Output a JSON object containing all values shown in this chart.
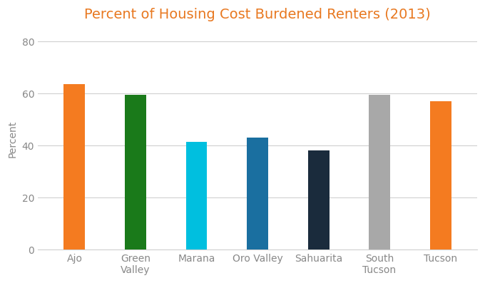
{
  "title": "Percent of Housing Cost Burdened Renters (2013)",
  "categories": [
    "Ajo",
    "Green\nValley",
    "Marana",
    "Oro Valley",
    "Sahuarita",
    "South\nTucson",
    "Tucson"
  ],
  "values": [
    63.5,
    59.5,
    41.5,
    43.0,
    38.0,
    59.5,
    57.0
  ],
  "bar_colors": [
    "#F47B20",
    "#1A7A1A",
    "#00BFDF",
    "#1A6FA0",
    "#1A2B3C",
    "#A8A8A8",
    "#F47B20"
  ],
  "ylabel": "Percent",
  "ylim": [
    0,
    85
  ],
  "yticks": [
    0,
    20,
    40,
    60,
    80
  ],
  "background_color": "#ffffff",
  "grid_color": "#d0d0d0",
  "title_fontsize": 14,
  "title_color": "#E87820",
  "label_fontsize": 10,
  "tick_fontsize": 10,
  "tick_color": "#888888",
  "bar_width": 0.35
}
